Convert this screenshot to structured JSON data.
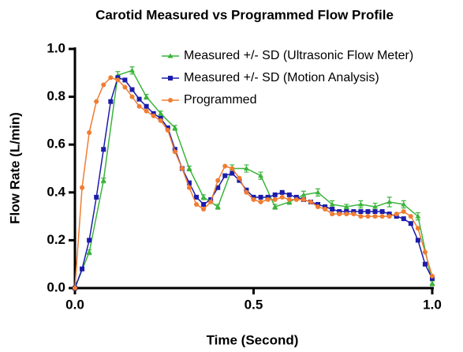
{
  "chart_data": {
    "type": "line",
    "title": "Carotid Measured vs Programmed Flow Profile",
    "x_label": "Time (Second)",
    "y_label": "Flow Rate (L/min)",
    "xlim": [
      0,
      1
    ],
    "ylim": [
      0,
      1
    ],
    "xticks": [
      {
        "value": 0,
        "label": "0.0"
      },
      0.5,
      {
        "value": 1,
        "label": "1.0"
      }
    ],
    "yticks": [
      {
        "value": 0,
        "label": "0.0"
      },
      0.2,
      0.4,
      0.6,
      0.8,
      {
        "value": 1,
        "label": "1.0"
      }
    ],
    "legend": "upper right",
    "series": [
      {
        "name": "Measured +/- SD (Ultrasonic Flow Meter)",
        "color": "#3cb43c",
        "marker": "triangle",
        "x": [
          0,
          0.04,
          0.08,
          0.12,
          0.16,
          0.2,
          0.24,
          0.28,
          0.32,
          0.36,
          0.4,
          0.44,
          0.48,
          0.52,
          0.56,
          0.6,
          0.64,
          0.68,
          0.72,
          0.76,
          0.8,
          0.84,
          0.88,
          0.92,
          0.96,
          1.0
        ],
        "values": [
          0,
          0.15,
          0.45,
          0.89,
          0.91,
          0.8,
          0.73,
          0.67,
          0.5,
          0.38,
          0.34,
          0.5,
          0.5,
          0.47,
          0.34,
          0.36,
          0.39,
          0.4,
          0.35,
          0.34,
          0.35,
          0.34,
          0.36,
          0.35,
          0.3,
          0.02
        ],
        "errors": [
          0.005,
          0.01,
          0.01,
          0.015,
          0.015,
          0.01,
          0.01,
          0.01,
          0.01,
          0.01,
          0.01,
          0.015,
          0.015,
          0.015,
          0.01,
          0.01,
          0.015,
          0.015,
          0.015,
          0.01,
          0.015,
          0.015,
          0.02,
          0.015,
          0.015,
          0.01
        ]
      },
      {
        "name": "Measured +/- SD (Motion Analysis)",
        "color": "#1c1caa",
        "marker": "square",
        "x": [
          0,
          0.02,
          0.04,
          0.06,
          0.08,
          0.1,
          0.12,
          0.14,
          0.16,
          0.18,
          0.2,
          0.22,
          0.24,
          0.26,
          0.28,
          0.3,
          0.32,
          0.34,
          0.36,
          0.38,
          0.4,
          0.42,
          0.44,
          0.46,
          0.48,
          0.5,
          0.52,
          0.54,
          0.56,
          0.58,
          0.6,
          0.62,
          0.64,
          0.66,
          0.68,
          0.7,
          0.72,
          0.74,
          0.76,
          0.78,
          0.8,
          0.82,
          0.84,
          0.86,
          0.88,
          0.9,
          0.92,
          0.94,
          0.96,
          0.98,
          1.0
        ],
        "values": [
          0,
          0.08,
          0.2,
          0.38,
          0.58,
          0.78,
          0.88,
          0.87,
          0.83,
          0.79,
          0.76,
          0.73,
          0.71,
          0.67,
          0.58,
          0.5,
          0.44,
          0.38,
          0.35,
          0.37,
          0.42,
          0.47,
          0.48,
          0.45,
          0.41,
          0.38,
          0.38,
          0.38,
          0.39,
          0.4,
          0.39,
          0.38,
          0.37,
          0.36,
          0.35,
          0.34,
          0.33,
          0.32,
          0.32,
          0.32,
          0.32,
          0.32,
          0.32,
          0.32,
          0.31,
          0.3,
          0.29,
          0.27,
          0.2,
          0.1,
          0.04
        ]
      },
      {
        "name": "Programmed",
        "color": "#f07d32",
        "marker": "circle",
        "x": [
          0,
          0.02,
          0.04,
          0.06,
          0.08,
          0.1,
          0.12,
          0.14,
          0.16,
          0.18,
          0.2,
          0.22,
          0.24,
          0.26,
          0.28,
          0.3,
          0.32,
          0.34,
          0.36,
          0.38,
          0.4,
          0.42,
          0.44,
          0.46,
          0.48,
          0.5,
          0.52,
          0.54,
          0.56,
          0.58,
          0.6,
          0.62,
          0.64,
          0.66,
          0.68,
          0.7,
          0.72,
          0.74,
          0.76,
          0.78,
          0.8,
          0.82,
          0.84,
          0.86,
          0.88,
          0.9,
          0.92,
          0.94,
          0.96,
          0.98,
          1.0
        ],
        "values": [
          0,
          0.42,
          0.65,
          0.78,
          0.85,
          0.88,
          0.87,
          0.84,
          0.8,
          0.76,
          0.74,
          0.72,
          0.7,
          0.66,
          0.57,
          0.5,
          0.42,
          0.35,
          0.33,
          0.36,
          0.45,
          0.51,
          0.5,
          0.46,
          0.4,
          0.37,
          0.36,
          0.37,
          0.37,
          0.38,
          0.37,
          0.37,
          0.37,
          0.36,
          0.34,
          0.33,
          0.31,
          0.31,
          0.31,
          0.31,
          0.3,
          0.3,
          0.3,
          0.3,
          0.3,
          0.31,
          0.32,
          0.3,
          0.25,
          0.15,
          0.05
        ]
      }
    ]
  }
}
